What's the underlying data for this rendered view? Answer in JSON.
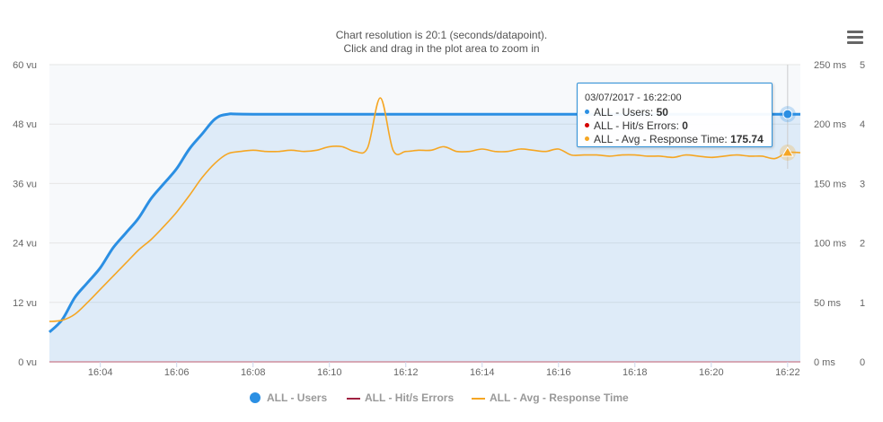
{
  "subtitle": {
    "line1": "Chart resolution is 20:1 (seconds/datapoint).",
    "line2": "Click and drag in the plot area to zoom in"
  },
  "menu": {
    "icon": "hamburger-menu-icon"
  },
  "tooltip": {
    "date": "03/07/2017 - 16:22:00",
    "rows": [
      {
        "label": "ALL - Users: ",
        "value": "50",
        "color": "#2b8fe3"
      },
      {
        "label": "ALL - Hit/s Errors: ",
        "value": "0",
        "color": "#d40000"
      },
      {
        "label": "ALL - Avg - Response Time: ",
        "value": "175.74",
        "color": "#f5a623"
      }
    ]
  },
  "legend": [
    {
      "label": "ALL - Users",
      "color": "#2b8fe3",
      "symbol": "circle"
    },
    {
      "label": "ALL - Hit/s Errors",
      "color": "#a02040",
      "symbol": "line"
    },
    {
      "label": "ALL - Avg - Response Time",
      "color": "#f5a623",
      "symbol": "line"
    }
  ],
  "chart_data": {
    "type": "line",
    "x_ticks": [
      "16:04",
      "16:06",
      "16:08",
      "16:10",
      "16:12",
      "16:14",
      "16:16",
      "16:18",
      "16:20",
      "16:22"
    ],
    "x_range": [
      "16:02:40",
      "16:22:20"
    ],
    "y_axes": [
      {
        "side": "left",
        "ticks": [
          "0 vu",
          "12 vu",
          "24 vu",
          "36 vu",
          "48 vu",
          "60 vu"
        ],
        "range": [
          0,
          60
        ]
      },
      {
        "side": "right",
        "ticks": [
          "0 ms",
          "50 ms",
          "100 ms",
          "150 ms",
          "200 ms",
          "250 ms"
        ],
        "range": [
          0,
          250
        ]
      },
      {
        "side": "right",
        "ticks": [
          "0",
          "1",
          "2",
          "3",
          "4",
          "5"
        ],
        "range": [
          0,
          5
        ]
      }
    ],
    "grid": true,
    "legend_position": "bottom",
    "series": [
      {
        "name": "ALL - Users",
        "axis": 0,
        "color": "#2b8fe3",
        "fill": true,
        "points": [
          [
            "16:02:40",
            6
          ],
          [
            "16:03:00",
            8.5
          ],
          [
            "16:03:20",
            13
          ],
          [
            "16:03:40",
            16
          ],
          [
            "16:04:00",
            19
          ],
          [
            "16:04:20",
            23
          ],
          [
            "16:04:40",
            26
          ],
          [
            "16:05:00",
            29
          ],
          [
            "16:05:20",
            33
          ],
          [
            "16:05:40",
            36
          ],
          [
            "16:06:00",
            39
          ],
          [
            "16:06:20",
            43
          ],
          [
            "16:06:40",
            46
          ],
          [
            "16:07:00",
            49
          ],
          [
            "16:07:20",
            50
          ],
          [
            "16:08:00",
            50
          ],
          [
            "16:12:00",
            50
          ],
          [
            "16:16:00",
            50
          ],
          [
            "16:20:00",
            50
          ],
          [
            "16:22:20",
            50
          ]
        ]
      },
      {
        "name": "ALL - Hit/s Errors",
        "axis": 2,
        "color": "#d40000",
        "fill": false,
        "points": [
          [
            "16:02:40",
            0
          ],
          [
            "16:22:20",
            0
          ]
        ]
      },
      {
        "name": "ALL - Avg - Response Time",
        "axis": 1,
        "color": "#f5a623",
        "fill": false,
        "points": [
          [
            "16:02:40",
            34
          ],
          [
            "16:03:00",
            35
          ],
          [
            "16:03:20",
            40
          ],
          [
            "16:03:40",
            50
          ],
          [
            "16:04:00",
            61
          ],
          [
            "16:04:20",
            72
          ],
          [
            "16:04:40",
            83
          ],
          [
            "16:05:00",
            94
          ],
          [
            "16:05:20",
            103
          ],
          [
            "16:05:40",
            114
          ],
          [
            "16:06:00",
            126
          ],
          [
            "16:06:20",
            140
          ],
          [
            "16:06:40",
            155
          ],
          [
            "16:07:00",
            167
          ],
          [
            "16:07:20",
            175
          ],
          [
            "16:07:40",
            177
          ],
          [
            "16:08:00",
            178
          ],
          [
            "16:08:20",
            177
          ],
          [
            "16:08:40",
            177
          ],
          [
            "16:09:00",
            178
          ],
          [
            "16:09:20",
            177
          ],
          [
            "16:09:40",
            178
          ],
          [
            "16:10:00",
            181
          ],
          [
            "16:10:20",
            181
          ],
          [
            "16:10:40",
            177
          ],
          [
            "16:11:00",
            180
          ],
          [
            "16:11:20",
            222
          ],
          [
            "16:11:40",
            178
          ],
          [
            "16:12:00",
            177
          ],
          [
            "16:12:20",
            178
          ],
          [
            "16:12:40",
            178
          ],
          [
            "16:13:00",
            181
          ],
          [
            "16:13:20",
            177
          ],
          [
            "16:13:40",
            177
          ],
          [
            "16:14:00",
            179
          ],
          [
            "16:14:20",
            177
          ],
          [
            "16:14:40",
            177
          ],
          [
            "16:15:00",
            179
          ],
          [
            "16:15:20",
            178
          ],
          [
            "16:15:40",
            177
          ],
          [
            "16:16:00",
            179
          ],
          [
            "16:16:20",
            174
          ],
          [
            "16:16:40",
            174
          ],
          [
            "16:17:00",
            174
          ],
          [
            "16:17:20",
            173
          ],
          [
            "16:17:40",
            174
          ],
          [
            "16:18:00",
            174
          ],
          [
            "16:18:20",
            173
          ],
          [
            "16:18:40",
            173
          ],
          [
            "16:19:00",
            172
          ],
          [
            "16:19:20",
            174
          ],
          [
            "16:19:40",
            173
          ],
          [
            "16:20:00",
            172
          ],
          [
            "16:20:20",
            173
          ],
          [
            "16:20:40",
            174
          ],
          [
            "16:21:00",
            173
          ],
          [
            "16:21:20",
            173
          ],
          [
            "16:21:40",
            171
          ],
          [
            "16:22:00",
            176
          ],
          [
            "16:22:20",
            176
          ]
        ]
      }
    ]
  }
}
